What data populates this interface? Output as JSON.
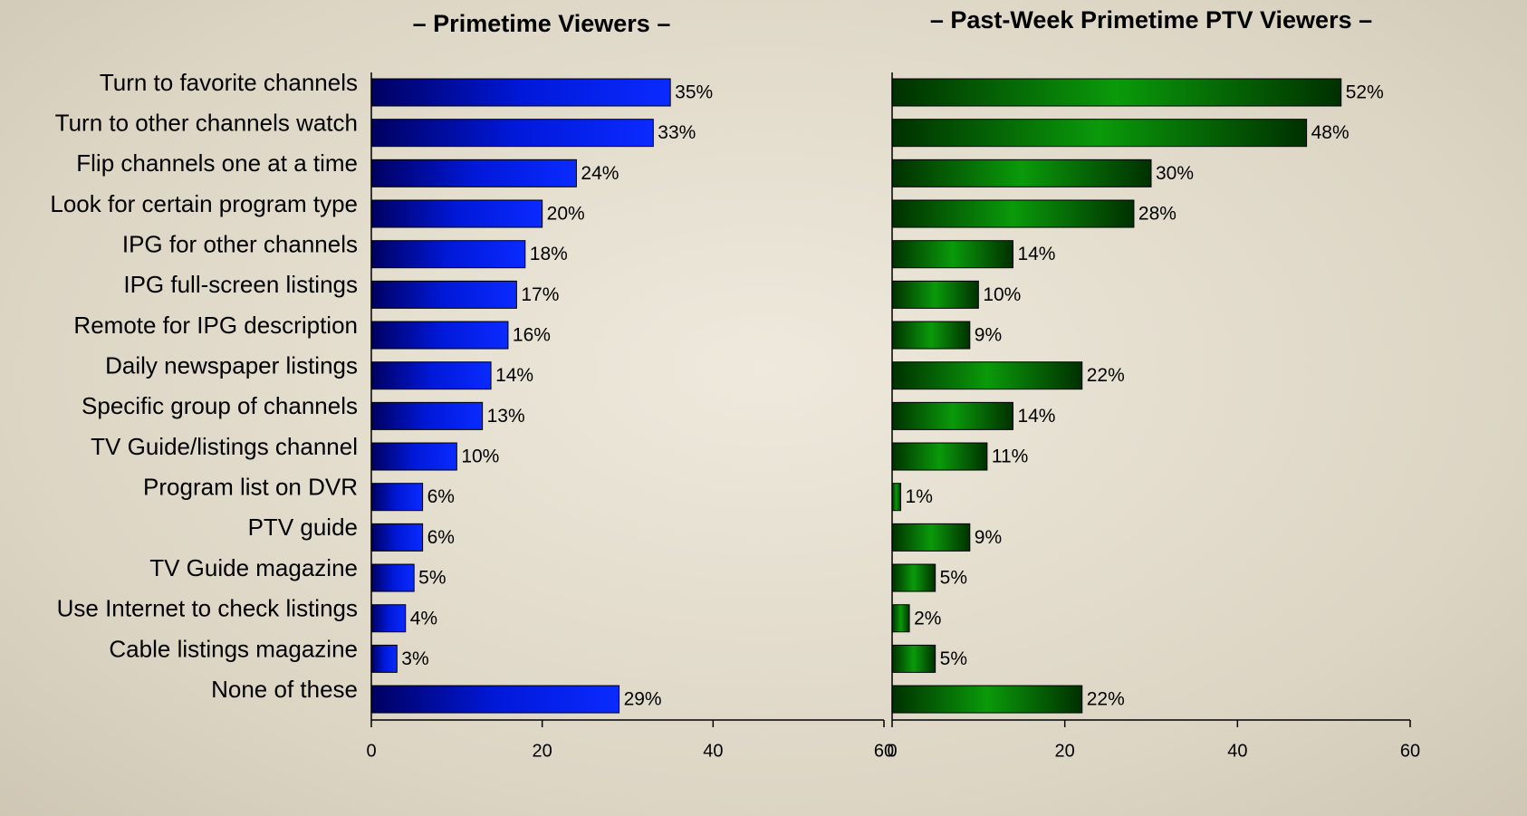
{
  "chart_data": [
    {
      "type": "bar",
      "orientation": "horizontal",
      "title": "– Primetime Viewers –",
      "categories": [
        "Turn to favorite channels",
        "Turn to other channels watch",
        "Flip channels one at a time",
        "Look for certain program type",
        "IPG for other channels",
        "IPG full-screen listings",
        "Remote for IPG description",
        "Daily newspaper listings",
        "Specific group of channels",
        "TV Guide/listings channel",
        "Program list on DVR",
        "PTV guide",
        "TV Guide magazine",
        "Use Internet to check listings",
        "Cable listings magazine",
        "None of these"
      ],
      "values": [
        35,
        33,
        24,
        20,
        18,
        17,
        16,
        14,
        13,
        10,
        6,
        6,
        5,
        4,
        3,
        29
      ],
      "value_labels": [
        "35%",
        "33%",
        "24%",
        "20%",
        "18%",
        "17%",
        "16%",
        "14%",
        "13%",
        "10%",
        "6%",
        "6%",
        "5%",
        "4%",
        "3%",
        "29%"
      ],
      "xlim": [
        0,
        60
      ],
      "xticks": [
        0,
        20,
        40,
        60
      ],
      "colors": [
        "#000060",
        "#0018d8",
        "#0a2aff"
      ]
    },
    {
      "type": "bar",
      "orientation": "horizontal",
      "title": "– Past-Week Primetime PTV Viewers –",
      "values": [
        52,
        48,
        30,
        28,
        14,
        10,
        9,
        22,
        14,
        11,
        1,
        9,
        5,
        2,
        5,
        22
      ],
      "value_labels": [
        "52%",
        "48%",
        "30%",
        "28%",
        "14%",
        "10%",
        "9%",
        "22%",
        "14%",
        "11%",
        "1%",
        "9%",
        "5%",
        "2%",
        "5%",
        "22%"
      ],
      "xlim": [
        0,
        60
      ],
      "xticks": [
        0,
        20,
        40,
        60
      ],
      "colors": [
        "#003000",
        "#0a9a0a",
        "#003000"
      ]
    }
  ]
}
